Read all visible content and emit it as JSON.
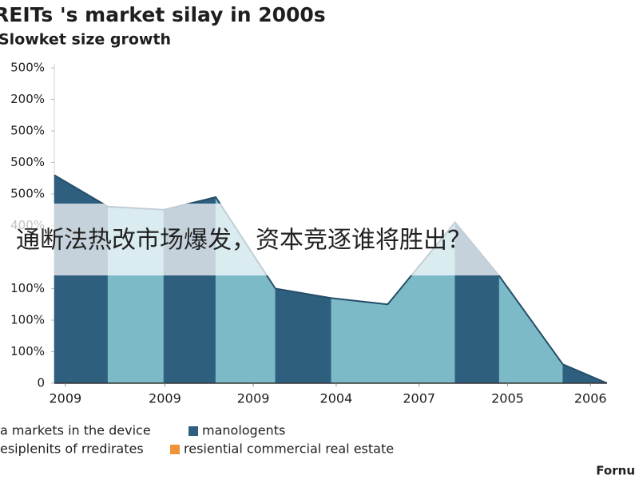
{
  "banner": "通断法热改市场爆发，资本竞逐谁将胜出？",
  "footer": "Fornu",
  "chart_data": {
    "type": "area",
    "title": "REITs 's market silay in 2000s",
    "subtitle": "Slowket size growth",
    "x": [
      0,
      9.7,
      19.8,
      29.2,
      40,
      50.1,
      60.3,
      72.5,
      80.5,
      92,
      100
    ],
    "values": [
      6.6,
      5.6,
      5.5,
      5.9,
      3,
      2.7,
      2.5,
      5.1,
      3.4,
      0.6,
      0
    ],
    "band_colors": [
      "#2f5f7e",
      "#7cbac8",
      "#2f5f7e",
      "#7cbac8",
      "#2f5f7e",
      "#7cbac8",
      "#7cbac8",
      "#2f5f7e",
      "#7cbac8",
      "#2f5f7e"
    ],
    "xlim": [
      0,
      100
    ],
    "xticks": [
      {
        "value": 2,
        "label": "2009"
      },
      {
        "value": 20,
        "label": "2009"
      },
      {
        "value": 36,
        "label": "2009"
      },
      {
        "value": 51,
        "label": "2004"
      },
      {
        "value": 66,
        "label": "2007"
      },
      {
        "value": 82,
        "label": "2005"
      },
      {
        "value": 97,
        "label": "2006"
      }
    ],
    "ylim": [
      0,
      10
    ],
    "yticks": [
      0,
      {
        "value": 1,
        "label": "100%"
      },
      {
        "value": 2,
        "label": "100%"
      },
      {
        "value": 3,
        "label": "100%"
      },
      {
        "value": 5,
        "label": "400%"
      },
      {
        "value": 6,
        "label": "500%"
      },
      {
        "value": 7,
        "label": "500%"
      },
      {
        "value": 8,
        "label": "500%"
      },
      {
        "value": 9,
        "label": "200%"
      },
      {
        "value": 10,
        "label": "500%"
      }
    ],
    "legend": [
      {
        "label": "a markets in the device",
        "color": null
      },
      {
        "label": "manologents",
        "color": "#2f5f7e"
      },
      {
        "label": "esiplenits of rredirates",
        "color": null
      },
      {
        "label": "resiential commercial real estate",
        "color": "#f0923a"
      }
    ]
  }
}
